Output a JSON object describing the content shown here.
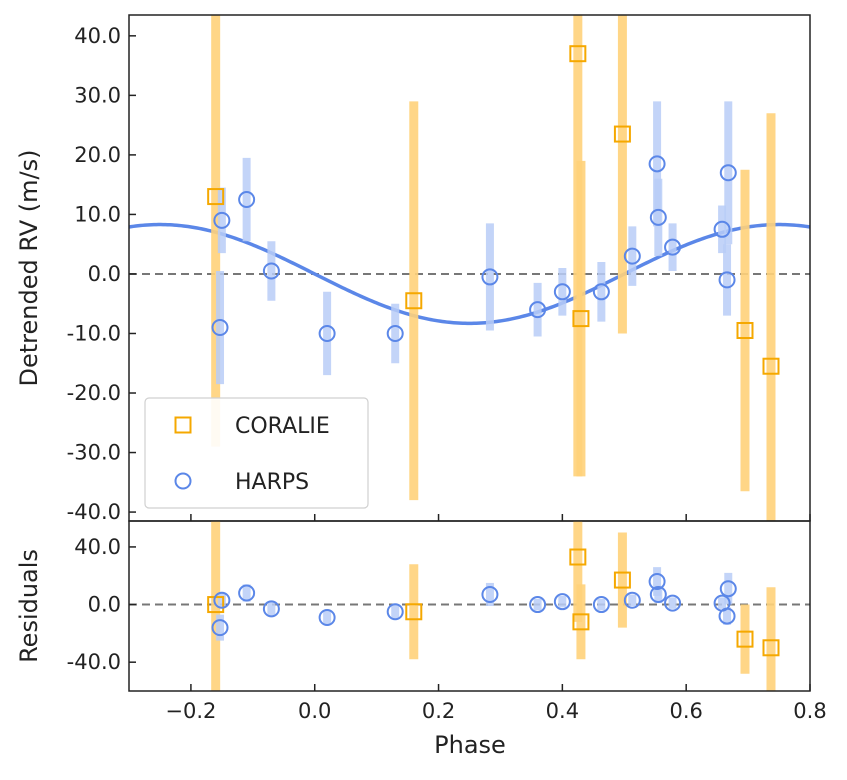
{
  "chart_data": {
    "type": "scatter",
    "xlabel": "Phase",
    "xlim": [
      -0.3,
      0.8
    ],
    "x_ticks": [
      "−0.2",
      "0.0",
      "0.2",
      "0.4",
      "0.6",
      "0.8"
    ],
    "x_tick_values": [
      -0.2,
      0.0,
      0.2,
      0.4,
      0.6,
      0.8
    ],
    "colors": {
      "coralie": "#f5a800",
      "coralie_err": "#ffd27a",
      "harps": "#5b87e8",
      "harps_err": "#b8cdf7",
      "model": "#5b87e8",
      "zero": "#777777"
    },
    "panels": {
      "main": {
        "ylabel": "Detrended RV (m/s)",
        "ylim": [
          -41.5,
          43.5
        ],
        "y_ticks": [
          "40.0",
          "30.0",
          "20.0",
          "10.0",
          "0.0",
          "-10.0",
          "-20.0",
          "-30.0",
          "-40.0"
        ],
        "y_tick_values": [
          40,
          30,
          20,
          10,
          0,
          -10,
          -20,
          -30,
          -40
        ],
        "model": {
          "type": "sinusoid",
          "amplitude": 8.3,
          "phase_of_max": -0.25,
          "period": 1.0,
          "offset": 0
        },
        "series": [
          {
            "name": "CORALIE",
            "marker": "square",
            "points": [
              {
                "x": -0.16,
                "y": 13.0,
                "err": 42
              },
              {
                "x": 0.16,
                "y": -4.5,
                "err": 33.5
              },
              {
                "x": 0.425,
                "y": 37.0,
                "err": 71
              },
              {
                "x": 0.43,
                "y": -7.5,
                "err": 26.5
              },
              {
                "x": 0.497,
                "y": 23.5,
                "err": 33.5
              },
              {
                "x": 0.695,
                "y": -9.5,
                "err": 27
              },
              {
                "x": 0.737,
                "y": -15.5,
                "err": 42.5
              }
            ]
          },
          {
            "name": "HARPS",
            "marker": "circle",
            "points": [
              {
                "x": -0.15,
                "y": 9.0,
                "err": 5.5
              },
              {
                "x": -0.153,
                "y": -9.0,
                "err": 9.5
              },
              {
                "x": -0.11,
                "y": 12.5,
                "err": 7
              },
              {
                "x": -0.07,
                "y": 0.5,
                "err": 5
              },
              {
                "x": 0.02,
                "y": -10.0,
                "err": 7
              },
              {
                "x": 0.13,
                "y": -10.0,
                "err": 5
              },
              {
                "x": 0.283,
                "y": -0.5,
                "err": 9
              },
              {
                "x": 0.36,
                "y": -6.0,
                "err": 4.5
              },
              {
                "x": 0.4,
                "y": -3.0,
                "err": 4
              },
              {
                "x": 0.463,
                "y": -3.0,
                "err": 5
              },
              {
                "x": 0.513,
                "y": 3.0,
                "err": 5
              },
              {
                "x": 0.553,
                "y": 18.5,
                "err": 10.5
              },
              {
                "x": 0.555,
                "y": 9.5,
                "err": 6.5
              },
              {
                "x": 0.578,
                "y": 4.5,
                "err": 4
              },
              {
                "x": 0.658,
                "y": 7.5,
                "err": 4
              },
              {
                "x": 0.668,
                "y": 17.0,
                "err": 12
              },
              {
                "x": 0.666,
                "y": -1.0,
                "err": 6
              }
            ]
          }
        ],
        "legend": {
          "position": "lower-left",
          "entries": [
            "CORALIE",
            "HARPS"
          ]
        }
      },
      "residuals": {
        "ylabel": "Residuals",
        "ylim": [
          -60,
          58
        ],
        "y_ticks": [
          "40.0",
          "0.0",
          "-40.0"
        ],
        "y_tick_values": [
          40,
          0,
          -40
        ],
        "series": [
          {
            "name": "CORALIE",
            "marker": "square",
            "points": [
              {
                "x": -0.16,
                "y": 0.0,
                "err": 62
              },
              {
                "x": 0.16,
                "y": -5.0,
                "err": 33
              },
              {
                "x": 0.425,
                "y": 33.0,
                "err": 45
              },
              {
                "x": 0.43,
                "y": -12.0,
                "err": 26
              },
              {
                "x": 0.497,
                "y": 17.0,
                "err": 33
              },
              {
                "x": 0.695,
                "y": -24.0,
                "err": 24
              },
              {
                "x": 0.737,
                "y": -30.0,
                "err": 42
              }
            ]
          },
          {
            "name": "HARPS",
            "marker": "circle",
            "points": [
              {
                "x": -0.15,
                "y": 3.0,
                "err": 5
              },
              {
                "x": -0.153,
                "y": -16.0,
                "err": 9
              },
              {
                "x": -0.11,
                "y": 8.0,
                "err": 6
              },
              {
                "x": -0.07,
                "y": -3.0,
                "err": 5
              },
              {
                "x": 0.02,
                "y": -9.0,
                "err": 5
              },
              {
                "x": 0.13,
                "y": -5.0,
                "err": 5
              },
              {
                "x": 0.283,
                "y": 7.0,
                "err": 8
              },
              {
                "x": 0.36,
                "y": 0.0,
                "err": 4
              },
              {
                "x": 0.4,
                "y": 2.0,
                "err": 4
              },
              {
                "x": 0.463,
                "y": 0.0,
                "err": 4
              },
              {
                "x": 0.513,
                "y": 3.0,
                "err": 4
              },
              {
                "x": 0.553,
                "y": 16.0,
                "err": 10
              },
              {
                "x": 0.555,
                "y": 7.0,
                "err": 6
              },
              {
                "x": 0.578,
                "y": 1.0,
                "err": 4
              },
              {
                "x": 0.658,
                "y": 1.0,
                "err": 4
              },
              {
                "x": 0.668,
                "y": 11.0,
                "err": 11
              },
              {
                "x": 0.666,
                "y": -8.0,
                "err": 6
              }
            ]
          }
        ]
      }
    }
  }
}
